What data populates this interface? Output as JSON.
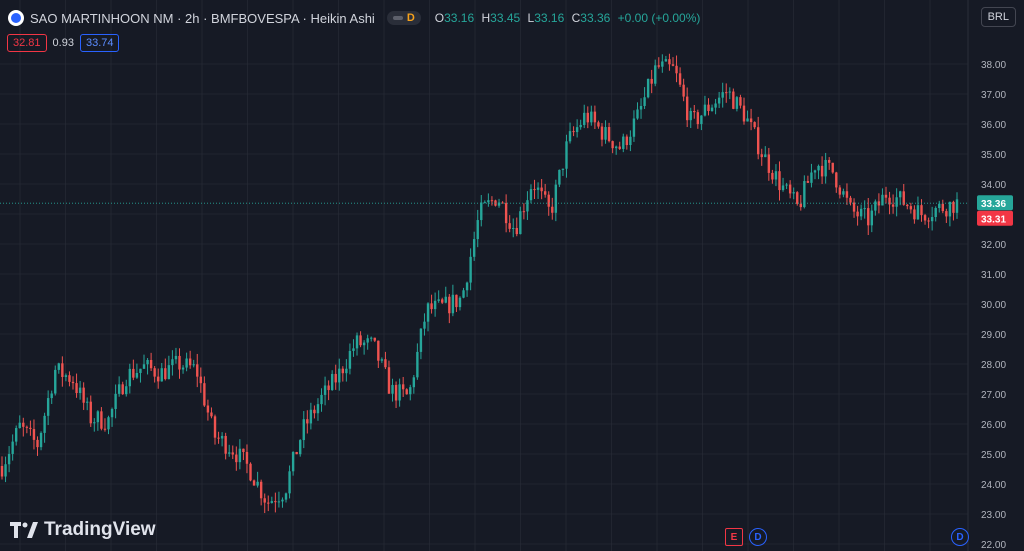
{
  "header": {
    "title": "SAO MARTINHOON NM · 2h · BMFBOVESPA · Heikin Ashi",
    "badge": "D",
    "ohlc": {
      "o_label": "O",
      "o": "33.16",
      "h_label": "H",
      "h": "33.45",
      "l_label": "L",
      "l": "33.16",
      "c_label": "C",
      "c": "33.36",
      "change": "+0.00 (+0.00%)"
    }
  },
  "indicator": {
    "left": "32.81",
    "mid": "0.93",
    "right": "33.74"
  },
  "currency_button": "BRL",
  "watermark": "TradingView",
  "events": {
    "earnings": "E",
    "dividend1": "D",
    "dividend2": "D"
  },
  "colors": {
    "background": "#161a25",
    "up": "#26a69a",
    "down": "#ef5350",
    "grid": "#2a2e39",
    "axis_text": "#b2b5be",
    "price_line": "#26a69a"
  },
  "icons": [
    "logo-dot-icon",
    "tradingview-logo-icon"
  ],
  "chart_data": {
    "type": "candlestick",
    "style": "Heikin Ashi",
    "ylim": [
      22.0,
      39.0
    ],
    "y_ticks": [
      "22.00",
      "23.00",
      "24.00",
      "25.00",
      "26.00",
      "27.00",
      "28.00",
      "29.00",
      "30.00",
      "31.00",
      "32.00",
      "33.00",
      "34.00",
      "35.00",
      "36.00",
      "37.00",
      "38.00"
    ],
    "last_price": "33.36",
    "last_price_value": 33.36,
    "marker_price": "33.31",
    "marker_value": 33.31,
    "close_path": [
      24.6,
      25.9,
      25.3,
      27.8,
      27.5,
      26.2,
      26.1,
      27.6,
      27.9,
      27.7,
      28.0,
      27.8,
      25.6,
      25.2,
      24.5,
      23.4,
      23.8,
      25.8,
      26.8,
      27.6,
      28.7,
      28.6,
      27.1,
      26.9,
      29.8,
      29.9,
      30.2,
      33.0,
      33.6,
      32.5,
      34.1,
      33.0,
      35.4,
      36.3,
      35.7,
      35.2,
      36.3,
      37.9,
      37.8,
      36.0,
      36.6,
      37.1,
      36.3,
      35.0,
      34.0,
      33.2,
      34.7,
      34.4,
      33.1,
      32.8,
      33.7,
      33.4,
      33.0,
      33.2,
      33.36
    ],
    "candle_count": 270
  }
}
